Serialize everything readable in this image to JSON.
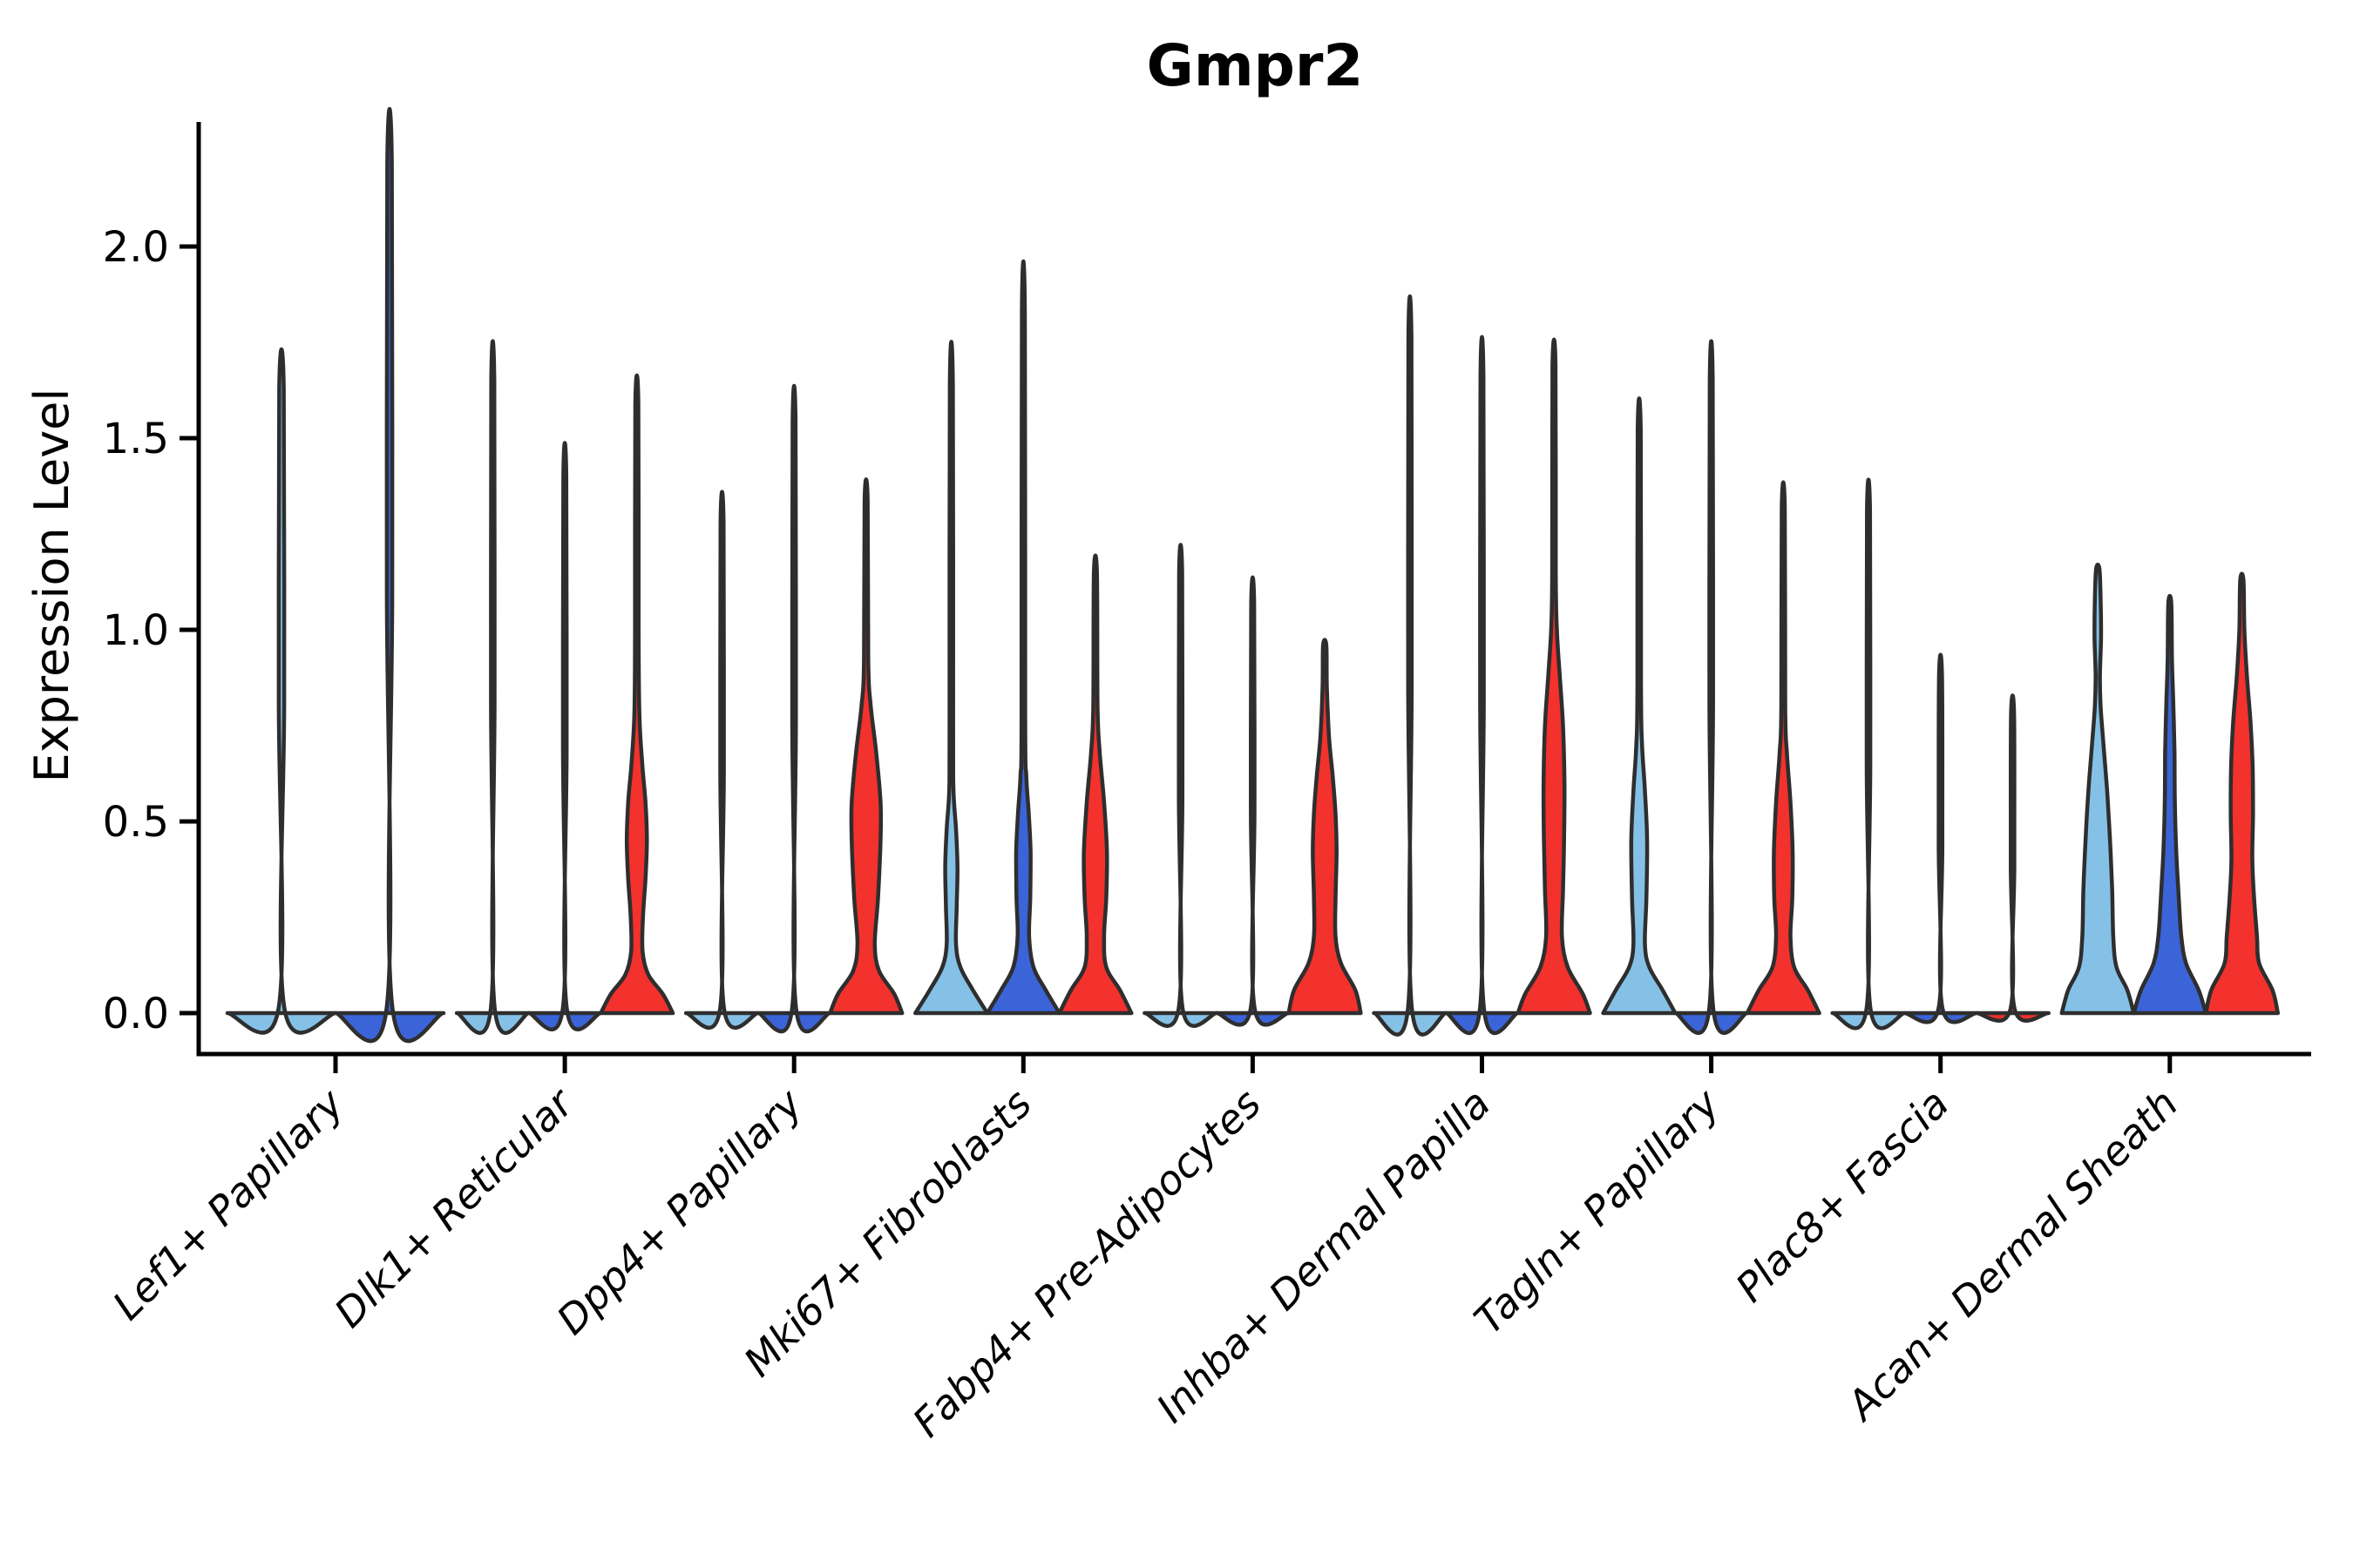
{
  "title": "Gmpr2",
  "axes": {
    "ylabel": "Expression Level",
    "ytick_labels": [
      "0.0",
      "0.5",
      "1.0",
      "1.5",
      "2.0"
    ]
  },
  "colors": {
    "light_blue": "#85C1E6",
    "royal_blue": "#3B64D8",
    "red": "#F3312D",
    "outline": "#2E2E2E",
    "axis": "#000000"
  },
  "chart_data": {
    "type": "violin",
    "title": "Gmpr2",
    "xlabel": "",
    "ylabel": "Expression Level",
    "ylim": [
      0,
      2.33
    ],
    "yticks": [
      0.0,
      0.5,
      1.0,
      1.5,
      2.0
    ],
    "grid": false,
    "legend": "none",
    "categories": [
      "Lef1+ Papillary",
      "Dlk1+ Reticular",
      "Dpp4+ Papillary",
      "Mki67+ Fibroblasts",
      "Fabp4+ Pre-Adipocytes",
      "Inhba+ Dermal Papilla",
      "Tagln+ Papillary",
      "Plac8+ Fascia",
      "Acan+ Dermal Sheath"
    ],
    "series_colors": {
      "light_blue": "#85C1E6",
      "royal_blue": "#3B64D8",
      "red": "#F3312D"
    },
    "groups": [
      {
        "category": "Lef1+ Papillary",
        "violins": [
          {
            "series": "light_blue",
            "shape": "line",
            "max": 1.63
          },
          {
            "series": "royal_blue",
            "shape": "line",
            "max": 2.22
          }
        ]
      },
      {
        "category": "Dlk1+ Reticular",
        "violins": [
          {
            "series": "light_blue",
            "shape": "line",
            "max": 1.65
          },
          {
            "series": "royal_blue",
            "shape": "line",
            "max": 1.4
          },
          {
            "series": "red",
            "shape": "violin",
            "max": 1.59,
            "profile": [
              [
                0,
                1.0
              ],
              [
                0.05,
                0.72
              ],
              [
                0.1,
                0.32
              ],
              [
                0.16,
                0.16
              ],
              [
                0.25,
                0.17
              ],
              [
                0.35,
                0.24
              ],
              [
                0.45,
                0.28
              ],
              [
                0.55,
                0.24
              ],
              [
                0.65,
                0.15
              ],
              [
                0.78,
                0.07
              ],
              [
                1.0,
                0.05
              ],
              [
                1.59,
                0.042
              ]
            ]
          }
        ]
      },
      {
        "category": "Dpp4+ Papillary",
        "violins": [
          {
            "series": "light_blue",
            "shape": "line",
            "max": 1.28
          },
          {
            "series": "royal_blue",
            "shape": "line",
            "max": 1.54
          },
          {
            "series": "red",
            "shape": "violin",
            "max": 1.34,
            "profile": [
              [
                0,
                1.0
              ],
              [
                0.05,
                0.78
              ],
              [
                0.11,
                0.36
              ],
              [
                0.18,
                0.24
              ],
              [
                0.3,
                0.33
              ],
              [
                0.45,
                0.4
              ],
              [
                0.55,
                0.4
              ],
              [
                0.68,
                0.28
              ],
              [
                0.8,
                0.13
              ],
              [
                0.92,
                0.06
              ],
              [
                1.34,
                0.042
              ]
            ]
          }
        ]
      },
      {
        "category": "Mki67+ Fibroblasts",
        "violins": [
          {
            "series": "light_blue",
            "shape": "violin",
            "max": 1.64,
            "profile": [
              [
                0,
                1.0
              ],
              [
                0.06,
                0.6
              ],
              [
                0.12,
                0.25
              ],
              [
                0.18,
                0.13
              ],
              [
                0.28,
                0.15
              ],
              [
                0.38,
                0.17
              ],
              [
                0.48,
                0.13
              ],
              [
                0.58,
                0.06
              ],
              [
                0.75,
                0.05
              ],
              [
                1.64,
                0.042
              ]
            ]
          },
          {
            "series": "royal_blue",
            "shape": "violin",
            "max": 1.83,
            "profile": [
              [
                0,
                1.0
              ],
              [
                0.06,
                0.62
              ],
              [
                0.12,
                0.28
              ],
              [
                0.2,
                0.16
              ],
              [
                0.3,
                0.19
              ],
              [
                0.42,
                0.2
              ],
              [
                0.52,
                0.15
              ],
              [
                0.62,
                0.08
              ],
              [
                0.78,
                0.05
              ],
              [
                1.83,
                0.042
              ]
            ]
          },
          {
            "series": "red",
            "shape": "violin",
            "max": 1.15,
            "profile": [
              [
                0,
                1.0
              ],
              [
                0.06,
                0.68
              ],
              [
                0.12,
                0.3
              ],
              [
                0.2,
                0.24
              ],
              [
                0.3,
                0.3
              ],
              [
                0.42,
                0.32
              ],
              [
                0.55,
                0.24
              ],
              [
                0.68,
                0.12
              ],
              [
                0.8,
                0.06
              ],
              [
                1.15,
                0.042
              ]
            ]
          }
        ]
      },
      {
        "category": "Fabp4+ Pre-Adipocytes",
        "violins": [
          {
            "series": "light_blue",
            "shape": "line",
            "max": 1.15
          },
          {
            "series": "royal_blue",
            "shape": "line",
            "max": 1.07
          },
          {
            "series": "red",
            "shape": "violin",
            "max": 0.96,
            "profile": [
              [
                0,
                1.0
              ],
              [
                0.06,
                0.85
              ],
              [
                0.13,
                0.45
              ],
              [
                0.2,
                0.3
              ],
              [
                0.3,
                0.3
              ],
              [
                0.42,
                0.33
              ],
              [
                0.52,
                0.3
              ],
              [
                0.62,
                0.22
              ],
              [
                0.72,
                0.12
              ],
              [
                0.85,
                0.06
              ],
              [
                0.96,
                0.045
              ]
            ]
          }
        ]
      },
      {
        "category": "Inhba+ Dermal Papilla",
        "violins": [
          {
            "series": "light_blue",
            "shape": "line",
            "max": 1.76
          },
          {
            "series": "royal_blue",
            "shape": "line",
            "max": 1.66
          },
          {
            "series": "red",
            "shape": "violin",
            "max": 1.69,
            "profile": [
              [
                0,
                1.0
              ],
              [
                0.05,
                0.8
              ],
              [
                0.12,
                0.38
              ],
              [
                0.2,
                0.22
              ],
              [
                0.32,
                0.25
              ],
              [
                0.45,
                0.28
              ],
              [
                0.6,
                0.29
              ],
              [
                0.75,
                0.25
              ],
              [
                0.88,
                0.16
              ],
              [
                1.0,
                0.08
              ],
              [
                1.15,
                0.05
              ],
              [
                1.69,
                0.042
              ]
            ]
          }
        ]
      },
      {
        "category": "Tagln+ Papillary",
        "violins": [
          {
            "series": "light_blue",
            "shape": "violin",
            "max": 1.52,
            "profile": [
              [
                0,
                1.0
              ],
              [
                0.06,
                0.65
              ],
              [
                0.12,
                0.28
              ],
              [
                0.18,
                0.16
              ],
              [
                0.3,
                0.2
              ],
              [
                0.45,
                0.22
              ],
              [
                0.58,
                0.16
              ],
              [
                0.7,
                0.08
              ],
              [
                0.85,
                0.05
              ],
              [
                1.52,
                0.042
              ]
            ]
          },
          {
            "series": "royal_blue",
            "shape": "line",
            "max": 1.65
          },
          {
            "series": "red",
            "shape": "violin",
            "max": 1.32,
            "profile": [
              [
                0,
                1.0
              ],
              [
                0.06,
                0.68
              ],
              [
                0.12,
                0.3
              ],
              [
                0.2,
                0.2
              ],
              [
                0.3,
                0.25
              ],
              [
                0.42,
                0.26
              ],
              [
                0.55,
                0.2
              ],
              [
                0.68,
                0.1
              ],
              [
                0.8,
                0.055
              ],
              [
                1.32,
                0.042
              ]
            ]
          }
        ]
      },
      {
        "category": "Plac8+ Fascia",
        "violins": [
          {
            "series": "light_blue",
            "shape": "line",
            "max": 1.31
          },
          {
            "series": "royal_blue",
            "shape": "line",
            "max": 0.88
          },
          {
            "series": "red",
            "shape": "line",
            "max": 0.78
          }
        ]
      },
      {
        "category": "Acan+ Dermal Sheath",
        "violins": [
          {
            "series": "light_blue",
            "shape": "violin",
            "max": 1.16,
            "profile": [
              [
                0,
                1.0
              ],
              [
                0.06,
                0.82
              ],
              [
                0.12,
                0.52
              ],
              [
                0.2,
                0.43
              ],
              [
                0.32,
                0.4
              ],
              [
                0.45,
                0.34
              ],
              [
                0.58,
                0.26
              ],
              [
                0.7,
                0.16
              ],
              [
                0.8,
                0.08
              ],
              [
                0.88,
                0.06
              ],
              [
                0.98,
                0.09
              ],
              [
                1.08,
                0.08
              ],
              [
                1.16,
                0.045
              ]
            ]
          },
          {
            "series": "royal_blue",
            "shape": "violin",
            "max": 1.07,
            "profile": [
              [
                0,
                1.0
              ],
              [
                0.06,
                0.8
              ],
              [
                0.13,
                0.45
              ],
              [
                0.2,
                0.32
              ],
              [
                0.3,
                0.25
              ],
              [
                0.42,
                0.18
              ],
              [
                0.55,
                0.14
              ],
              [
                0.68,
                0.13
              ],
              [
                0.8,
                0.1
              ],
              [
                0.92,
                0.06
              ],
              [
                1.07,
                0.042
              ]
            ]
          },
          {
            "series": "red",
            "shape": "violin",
            "max": 1.13,
            "profile": [
              [
                0,
                1.0
              ],
              [
                0.06,
                0.85
              ],
              [
                0.13,
                0.48
              ],
              [
                0.2,
                0.42
              ],
              [
                0.3,
                0.34
              ],
              [
                0.4,
                0.29
              ],
              [
                0.52,
                0.31
              ],
              [
                0.64,
                0.3
              ],
              [
                0.76,
                0.24
              ],
              [
                0.88,
                0.14
              ],
              [
                1.0,
                0.07
              ],
              [
                1.13,
                0.045
              ]
            ]
          }
        ]
      }
    ]
  }
}
